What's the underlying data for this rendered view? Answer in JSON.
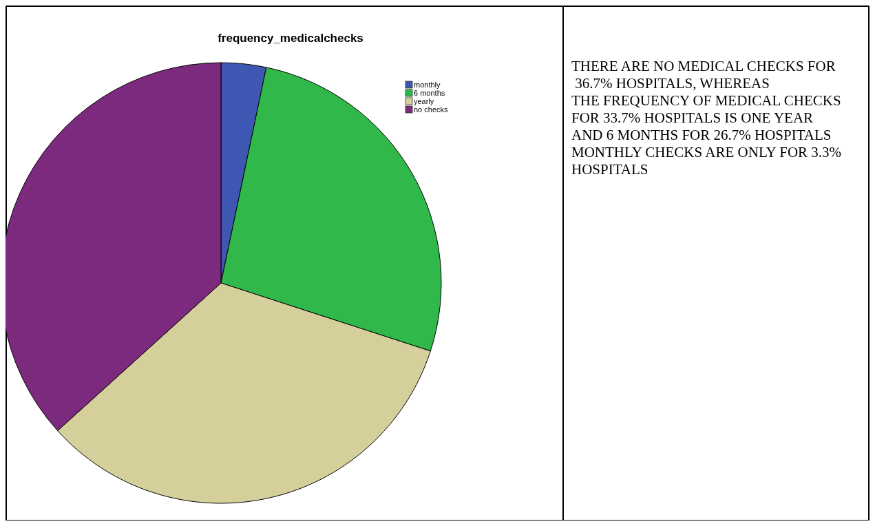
{
  "chart_data": {
    "type": "pie",
    "title": "frequency_medicalchecks",
    "categories": [
      "monthly",
      "6 months",
      "yearly",
      "no checks"
    ],
    "values": [
      3.3,
      26.7,
      33.3,
      36.7
    ],
    "colors": [
      "#3d57b3",
      "#30b94a",
      "#d5d09b",
      "#7b2a7d"
    ],
    "legend": "top right",
    "annotations": [
      "THERE ARE NO MEDICAL CHECKS FOR",
      " 36.7% HOSPITALS, WHEREAS",
      "THE FREQUENCY OF MEDICAL CHECKS",
      "FOR 33.7% HOSPITALS IS ONE YEAR",
      "AND 6 MONTHS FOR 26.7% HOSPITALS",
      "MONTHLY CHECKS ARE ONLY FOR 3.3%",
      "HOSPITALS"
    ]
  }
}
